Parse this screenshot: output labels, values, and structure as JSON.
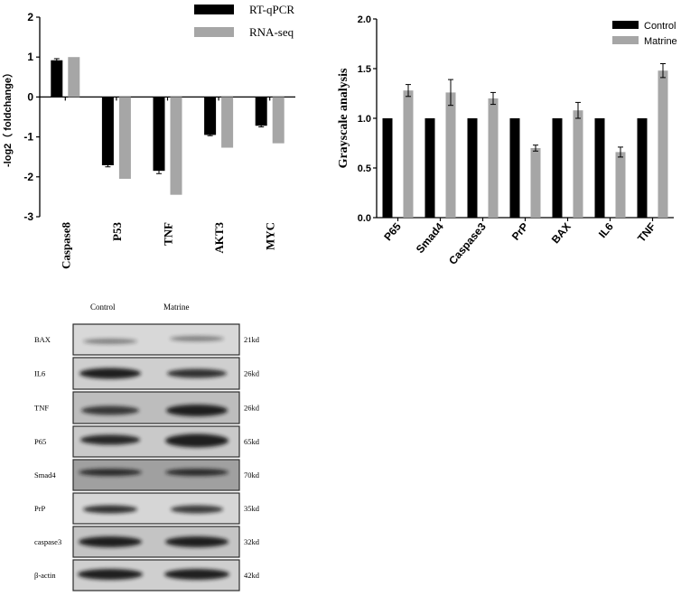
{
  "chart_data": [
    {
      "type": "bar",
      "title": "",
      "xlabel": "",
      "ylabel": "-log2（ foldchange）",
      "ylim": [
        -3,
        2
      ],
      "yticks": [
        2,
        1,
        0,
        -1,
        -2,
        -3
      ],
      "categories": [
        "Caspase8",
        "P53",
        "TNF",
        "AKT3",
        "MYC"
      ],
      "series": [
        {
          "name": "RT-qPCR",
          "color": "#000000",
          "values": [
            0.92,
            -1.71,
            -1.85,
            -0.95,
            -0.72
          ],
          "errors": [
            0.04,
            0.04,
            0.07,
            0.02,
            0.03
          ]
        },
        {
          "name": "RNA-seq",
          "color": "#a6a6a6",
          "values": [
            1.0,
            -2.05,
            -2.45,
            -1.27,
            -1.16
          ]
        }
      ],
      "legend": "top-right",
      "grid": false
    },
    {
      "type": "bar",
      "title": "",
      "xlabel": "",
      "ylabel": "Grayscale analysis",
      "ylim": [
        0,
        2.0
      ],
      "yticks": [
        "0.0",
        "0.5",
        "1.0",
        "1.5",
        "2.0"
      ],
      "categories": [
        "P65",
        "Smad4",
        "Caspase3",
        "PrP",
        "BAX",
        "IL6",
        "TNF"
      ],
      "series": [
        {
          "name": "Control",
          "color": "#000000",
          "values": [
            1.0,
            1.0,
            1.0,
            1.0,
            1.0,
            1.0,
            1.0
          ]
        },
        {
          "name": "Matrine",
          "color": "#a6a6a6",
          "values": [
            1.28,
            1.26,
            1.2,
            0.7,
            1.08,
            0.66,
            1.48
          ],
          "errors": [
            0.06,
            0.13,
            0.06,
            0.03,
            0.08,
            0.05,
            0.07
          ]
        }
      ],
      "legend": "top-right",
      "grid": false
    }
  ],
  "blot": {
    "columns": [
      "Control",
      "Matrine"
    ],
    "rows": [
      {
        "protein": "BAX",
        "size": "21kd"
      },
      {
        "protein": "IL6",
        "size": "26kd"
      },
      {
        "protein": "TNF",
        "size": "26kd"
      },
      {
        "protein": "P65",
        "size": "65kd"
      },
      {
        "protein": "Smad4",
        "size": "70kd"
      },
      {
        "protein": "PrP",
        "size": "35kd"
      },
      {
        "protein": "caspase3",
        "size": "32kd"
      },
      {
        "protein": "β-actin",
        "size": "42kd"
      }
    ]
  }
}
